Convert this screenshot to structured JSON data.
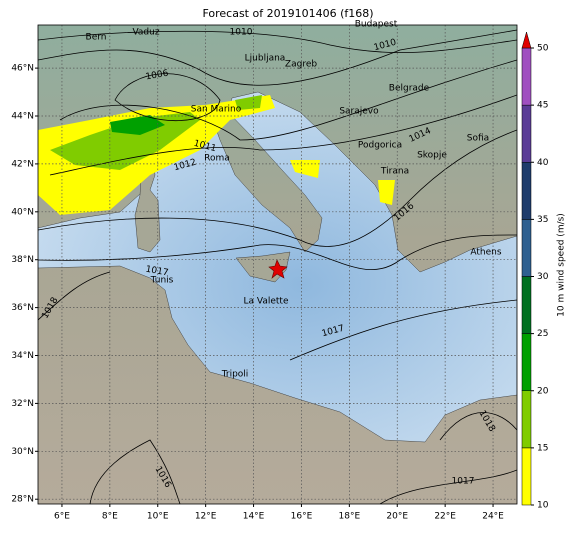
{
  "title": "Forecast of 2019101406 (f168)",
  "map": {
    "xlim": [
      5,
      25
    ],
    "ylim": [
      27.8,
      47.8
    ],
    "xticks": [
      {
        "value": 6,
        "label": "6°E"
      },
      {
        "value": 8,
        "label": "8°E"
      },
      {
        "value": 10,
        "label": "10°E"
      },
      {
        "value": 12,
        "label": "12°E"
      },
      {
        "value": 14,
        "label": "14°E"
      },
      {
        "value": 16,
        "label": "16°E"
      },
      {
        "value": 18,
        "label": "18°E"
      },
      {
        "value": 20,
        "label": "20°E"
      },
      {
        "value": 22,
        "label": "22°E"
      },
      {
        "value": 24,
        "label": "24°E"
      }
    ],
    "yticks": [
      {
        "value": 28,
        "label": "28°N"
      },
      {
        "value": 30,
        "label": "30°N"
      },
      {
        "value": 32,
        "label": "32°N"
      },
      {
        "value": 34,
        "label": "34°N"
      },
      {
        "value": 36,
        "label": "36°N"
      },
      {
        "value": 38,
        "label": "38°N"
      },
      {
        "value": 40,
        "label": "40°N"
      },
      {
        "value": 42,
        "label": "42°N"
      },
      {
        "value": 44,
        "label": "44°N"
      },
      {
        "value": 46,
        "label": "46°N"
      }
    ],
    "grid": true,
    "cities": [
      "Bern",
      "Vaduz",
      "Budapest",
      "Ljubljana",
      "Zagreb",
      "San Marino",
      "Belgrade",
      "Sarajevo",
      "Podgorica",
      "Sofia",
      "Skopje",
      "Roma",
      "Tirana",
      "Athens",
      "Tunis",
      "La Valette",
      "Tripoli"
    ],
    "isobar_labels": [
      1010,
      1010,
      1006,
      1011,
      1012,
      1014,
      1016,
      1016,
      1017,
      1017,
      1017,
      1018,
      1018
    ]
  },
  "colorbar": {
    "label": "10 m wind speed (m/s)",
    "ticks": [
      10,
      15,
      20,
      25,
      30,
      35,
      40,
      45,
      50
    ],
    "colors": [
      "#ffff00",
      "#80cc00",
      "#00a000",
      "#007020",
      "#2e6090",
      "#1e3c6c",
      "#5a3c96",
      "#a050c0"
    ],
    "extend_color": "#e00000"
  }
}
